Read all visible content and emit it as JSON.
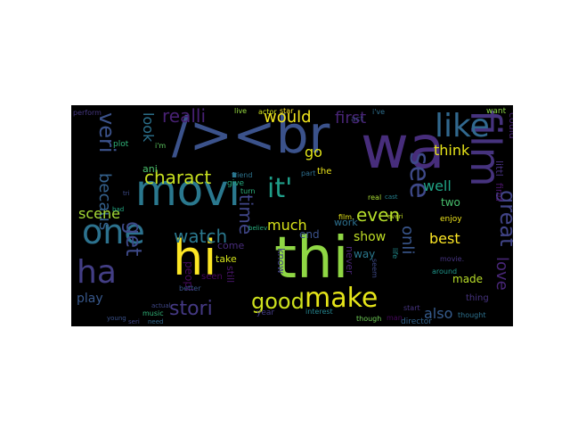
{
  "wordcloud": {
    "background": "#000000",
    "words": [
      {
        "text": "thi",
        "color": "#8fd744",
        "size": 64
      },
      {
        "text": "/><br",
        "color": "#3b528b",
        "size": 58
      },
      {
        "text": "wa",
        "color": "#472d7b",
        "size": 66
      },
      {
        "text": "hi",
        "color": "#fde725",
        "size": 54
      },
      {
        "text": "movi",
        "color": "#2a788e",
        "size": 48
      },
      {
        "text": "film",
        "color": "#46337e",
        "size": 46
      },
      {
        "text": "one",
        "color": "#2c728e",
        "size": 38
      },
      {
        "text": "ha",
        "color": "#433e85",
        "size": 36
      },
      {
        "text": "like",
        "color": "#31688e",
        "size": 36
      },
      {
        "text": "make",
        "color": "#e5e419",
        "size": 30
      },
      {
        "text": "good",
        "color": "#cde11d",
        "size": 24
      },
      {
        "text": "see",
        "color": "#3e4989",
        "size": 30
      },
      {
        "text": "it'",
        "color": "#1f9e89",
        "size": 30
      },
      {
        "text": "great",
        "color": "#414487",
        "size": 24
      },
      {
        "text": "even",
        "color": "#b5de2b",
        "size": 20
      },
      {
        "text": "stori",
        "color": "#443983",
        "size": 22
      },
      {
        "text": "veri",
        "color": "#3b528b",
        "size": 24
      },
      {
        "text": "get",
        "color": "#3e4a89",
        "size": 24
      },
      {
        "text": "charact",
        "color": "#c8e020",
        "size": 20
      },
      {
        "text": "realli",
        "color": "#482173",
        "size": 20
      },
      {
        "text": "would",
        "color": "#f1e51d",
        "size": 18
      },
      {
        "text": "watch",
        "color": "#2a788e",
        "size": 20
      },
      {
        "text": "first",
        "color": "#482475",
        "size": 18
      },
      {
        "text": "time",
        "color": "#404688",
        "size": 20
      },
      {
        "text": "becaus",
        "color": "#34618d",
        "size": 18
      },
      {
        "text": "look",
        "color": "#2c728e",
        "size": 16
      },
      {
        "text": "love",
        "color": "#482677",
        "size": 18
      },
      {
        "text": "onli",
        "color": "#39568c",
        "size": 18
      },
      {
        "text": "well",
        "color": "#20a486",
        "size": 16
      },
      {
        "text": "think",
        "color": "#e7e419",
        "size": 16
      },
      {
        "text": "much",
        "color": "#d8e219",
        "size": 16
      },
      {
        "text": "best",
        "color": "#fde725",
        "size": 16
      },
      {
        "text": "scene",
        "color": "#a5db36",
        "size": 16
      },
      {
        "text": "also",
        "color": "#365c8d",
        "size": 16
      },
      {
        "text": "go",
        "color": "#e2e418",
        "size": 16
      },
      {
        "text": "play",
        "color": "#38588c",
        "size": 14
      },
      {
        "text": "show",
        "color": "#c0df25",
        "size": 14
      },
      {
        "text": "end",
        "color": "#3b528b",
        "size": 12
      },
      {
        "text": "two",
        "color": "#48c16e",
        "size": 12
      },
      {
        "text": "made",
        "color": "#b8de29",
        "size": 12
      },
      {
        "text": "know",
        "color": "#424086",
        "size": 11
      },
      {
        "text": "peopl",
        "color": "#460a5d",
        "size": 12
      },
      {
        "text": "come",
        "color": "#472c7a",
        "size": 11
      },
      {
        "text": "take",
        "color": "#d2e21b",
        "size": 11
      },
      {
        "text": "still",
        "color": "#481668",
        "size": 11
      },
      {
        "text": "way",
        "color": "#2a788e",
        "size": 12
      },
      {
        "text": "never",
        "color": "#482374",
        "size": 11
      },
      {
        "text": "work",
        "color": "#2d708e",
        "size": 11
      },
      {
        "text": "could",
        "color": "#482475",
        "size": 11
      },
      {
        "text": "littl",
        "color": "#46307e",
        "size": 11
      },
      {
        "text": "find",
        "color": "#481467",
        "size": 11
      },
      {
        "text": "ani",
        "color": "#4ac16d",
        "size": 11
      },
      {
        "text": "seen",
        "color": "#46085c",
        "size": 10
      },
      {
        "text": "the",
        "color": "#ece51b",
        "size": 10
      },
      {
        "text": "thing",
        "color": "#46337e",
        "size": 10
      },
      {
        "text": "director",
        "color": "#32648e",
        "size": 9
      },
      {
        "text": "enjoy",
        "color": "#efe51c",
        "size": 9
      },
      {
        "text": "want",
        "color": "#8bd646",
        "size": 9
      },
      {
        "text": "plot",
        "color": "#31b57b",
        "size": 9
      },
      {
        "text": "act",
        "color": "#404688",
        "size": 9
      },
      {
        "text": "year",
        "color": "#443b84",
        "size": 9
      },
      {
        "text": "give",
        "color": "#26ad81",
        "size": 9
      },
      {
        "text": "friend",
        "color": "#2c738e",
        "size": 8
      },
      {
        "text": "movie.",
        "color": "#463480",
        "size": 8
      },
      {
        "text": "music",
        "color": "#32b67a",
        "size": 8
      },
      {
        "text": "seem",
        "color": "#3e4a89",
        "size": 8
      },
      {
        "text": "start",
        "color": "#463480",
        "size": 8
      },
      {
        "text": "thought",
        "color": "#2d718e",
        "size": 8
      },
      {
        "text": "perform",
        "color": "#453781",
        "size": 8
      },
      {
        "text": "actor",
        "color": "#d0e11c",
        "size": 8
      },
      {
        "text": "star",
        "color": "#fde725",
        "size": 8
      },
      {
        "text": "live",
        "color": "#95d840",
        "size": 8
      },
      {
        "text": "i'm",
        "color": "#5ec962",
        "size": 8
      },
      {
        "text": "better",
        "color": "#39568c",
        "size": 8
      },
      {
        "text": "turn",
        "color": "#2db27d",
        "size": 8
      },
      {
        "text": "interest",
        "color": "#25848e",
        "size": 8
      },
      {
        "text": "though",
        "color": "#70cf57",
        "size": 8
      },
      {
        "text": "part",
        "color": "#2e6e8e",
        "size": 8
      },
      {
        "text": "man",
        "color": "#46085c",
        "size": 8
      },
      {
        "text": "around",
        "color": "#1f968b",
        "size": 8
      },
      {
        "text": "life",
        "color": "#228c8d",
        "size": 8
      },
      {
        "text": "real",
        "color": "#a8db34",
        "size": 8
      },
      {
        "text": "film.",
        "color": "#e3e418",
        "size": 8
      },
      {
        "text": "i've",
        "color": "#2e6f8e",
        "size": 8
      },
      {
        "text": "actual",
        "color": "#3f4788",
        "size": 7
      },
      {
        "text": "young",
        "color": "#3b528b",
        "size": 7
      },
      {
        "text": "everi",
        "color": "#c2df23",
        "size": 7
      },
      {
        "text": "seri",
        "color": "#404688",
        "size": 7
      },
      {
        "text": "need",
        "color": "#31688e",
        "size": 7
      },
      {
        "text": "tri",
        "color": "#3e4c8a",
        "size": 7
      },
      {
        "text": "bad",
        "color": "#23a983",
        "size": 7
      },
      {
        "text": "believ",
        "color": "#29af7f",
        "size": 7
      },
      {
        "text": "cast",
        "color": "#26818e",
        "size": 7
      }
    ]
  }
}
